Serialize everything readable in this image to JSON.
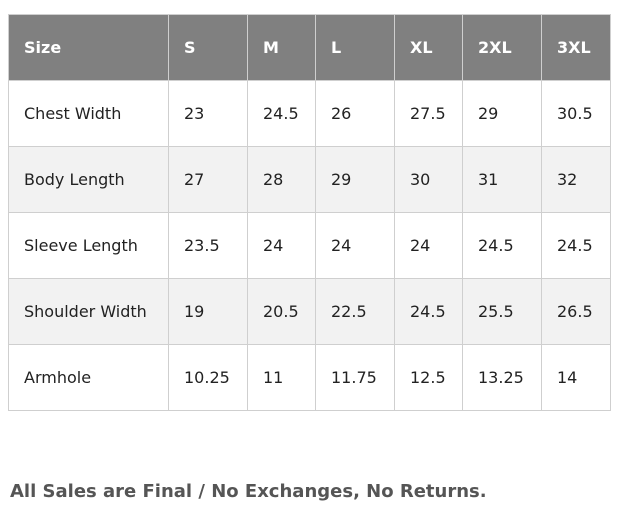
{
  "table": {
    "header": [
      "Size",
      "S",
      "M",
      "L",
      "XL",
      "2XL",
      "3XL"
    ],
    "rows": [
      [
        "Chest Width",
        "23",
        "24.5",
        "26",
        "27.5",
        "29",
        "30.5"
      ],
      [
        "Body Length",
        "27",
        "28",
        "29",
        "30",
        "31",
        "32"
      ],
      [
        "Sleeve Length",
        "23.5",
        "24",
        "24",
        "24",
        "24.5",
        "24.5"
      ],
      [
        "Shoulder Width",
        "19",
        "20.5",
        "22.5",
        "24.5",
        "25.5",
        "26.5"
      ],
      [
        "Armhole",
        "10.25",
        "11",
        "11.75",
        "12.5",
        "13.25",
        "14"
      ]
    ]
  },
  "footer": "All Sales are Final / No Exchanges, No Returns."
}
